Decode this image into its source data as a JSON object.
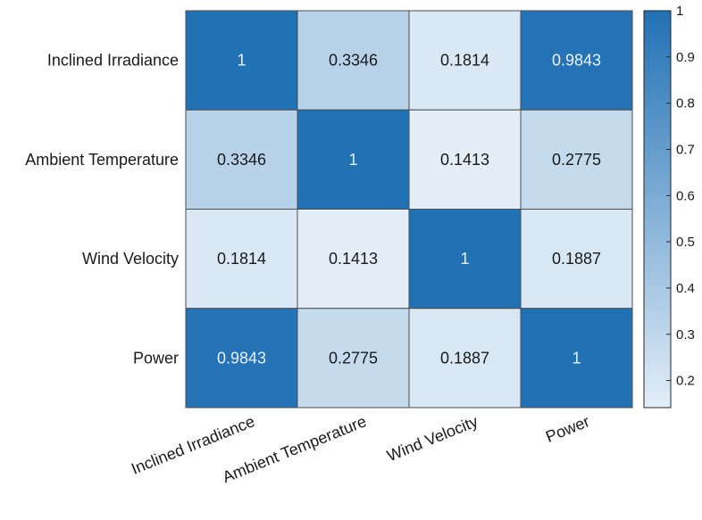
{
  "chart_data": {
    "type": "heatmap",
    "title": "",
    "xlabel": "",
    "ylabel": "",
    "rows": [
      "Inclined Irradiance",
      "Ambient Temperature",
      "Wind Velocity",
      "Power"
    ],
    "columns": [
      "Inclined Irradiance",
      "Ambient Temperature",
      "Wind Velocity",
      "Power"
    ],
    "values": [
      [
        1,
        0.3346,
        0.1814,
        0.9843
      ],
      [
        0.3346,
        1,
        0.1413,
        0.2775
      ],
      [
        0.1814,
        0.1413,
        1,
        0.1887
      ],
      [
        0.9843,
        0.2775,
        0.1887,
        1
      ]
    ],
    "value_labels": [
      [
        "1",
        "0.3346",
        "0.1814",
        "0.9843"
      ],
      [
        "0.3346",
        "1",
        "0.1413",
        "0.2775"
      ],
      [
        "0.1814",
        "0.1413",
        "1",
        "0.1887"
      ],
      [
        "0.9843",
        "0.2775",
        "0.1887",
        "1"
      ]
    ],
    "colorbar": {
      "range": [
        0.1413,
        1
      ],
      "ticks": [
        0.2,
        0.3,
        0.4,
        0.5,
        0.6,
        0.7,
        0.8,
        0.9,
        1
      ],
      "tick_labels": [
        "0.2",
        "0.3",
        "0.4",
        "0.5",
        "0.6",
        "0.7",
        "0.8",
        "0.9",
        "1"
      ],
      "color_low": "#e3eef8",
      "color_high": "#2171b5",
      "position": "right"
    },
    "colors": {
      "text_dark": "#1a1a1a",
      "text_light": "#e8f1fa",
      "grid_line": "#4d4d4d"
    }
  }
}
